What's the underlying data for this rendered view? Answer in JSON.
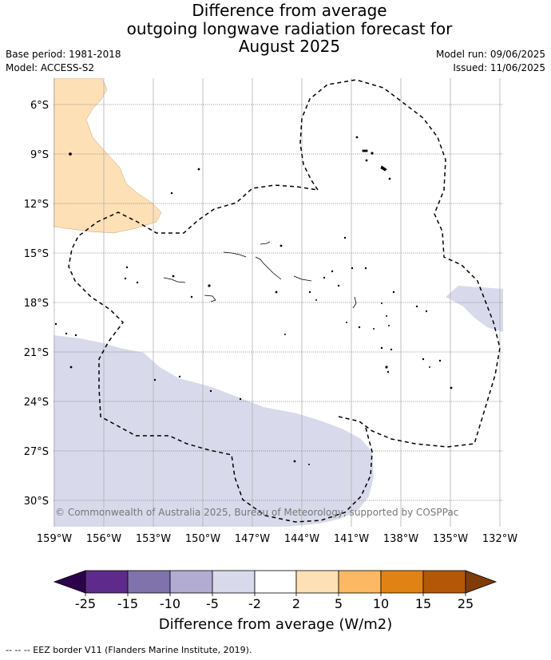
{
  "title": {
    "line1": "Difference from average",
    "line2": "outgoing longwave radiation forecast for",
    "line3": "August 2025"
  },
  "meta": {
    "base_period": "Base period: 1981-2018",
    "model": "Model: ACCESS-S2",
    "model_run": "Model run: 09/06/2025",
    "issued": "Issued: 11/06/2025"
  },
  "copyright": "© Commonwealth of Australia 2025, Bureau of Meteorology, supported by COSPPac",
  "footer": "-- -- -- EEZ border V11 (Flanders Marine Institute, 2019).",
  "chart_data": {
    "type": "heatmap",
    "x_range": [
      -159,
      -132
    ],
    "y_range": [
      -31.5,
      -4.5
    ],
    "x_ticks": [
      {
        "value": -159,
        "label": "159°W"
      },
      {
        "value": -156,
        "label": "156°W"
      },
      {
        "value": -153,
        "label": "153°W"
      },
      {
        "value": -150,
        "label": "150°W"
      },
      {
        "value": -147,
        "label": "147°W"
      },
      {
        "value": -144,
        "label": "144°W"
      },
      {
        "value": -141,
        "label": "141°W"
      },
      {
        "value": -138,
        "label": "138°W"
      },
      {
        "value": -135,
        "label": "135°W"
      },
      {
        "value": -132,
        "label": "132°W"
      }
    ],
    "y_ticks": [
      {
        "value": -6,
        "label": "6°S"
      },
      {
        "value": -9,
        "label": "9°S"
      },
      {
        "value": -12,
        "label": "12°S"
      },
      {
        "value": -15,
        "label": "15°S"
      },
      {
        "value": -18,
        "label": "18°S"
      },
      {
        "value": -21,
        "label": "21°S"
      },
      {
        "value": -24,
        "label": "24°S"
      },
      {
        "value": -27,
        "label": "27°S"
      },
      {
        "value": -30,
        "label": "30°S"
      }
    ],
    "grid": true,
    "colorbar": {
      "title": "Difference from average (W/m2)",
      "tick_labels": [
        "-25",
        "-15",
        "-10",
        "-5",
        "-2",
        "2",
        "5",
        "10",
        "15",
        "25"
      ],
      "bins": [
        {
          "range": [
            -25,
            -15
          ],
          "color": "#5e2a8c"
        },
        {
          "range": [
            -15,
            -10
          ],
          "color": "#8073ac"
        },
        {
          "range": [
            -10,
            -5
          ],
          "color": "#b2abd2"
        },
        {
          "range": [
            -5,
            -2
          ],
          "color": "#d8daeb"
        },
        {
          "range": [
            -2,
            2
          ],
          "color": "#ffffff"
        },
        {
          "range": [
            2,
            5
          ],
          "color": "#fee0b6"
        },
        {
          "range": [
            5,
            10
          ],
          "color": "#fdb863"
        },
        {
          "range": [
            10,
            15
          ],
          "color": "#e08214"
        },
        {
          "range": [
            15,
            25
          ],
          "color": "#b35806"
        }
      ],
      "under_color": "#2d004b",
      "over_color": "#7f3b08"
    },
    "anomaly_regions": [
      {
        "category": "2 to 5",
        "color": "#fee0b6",
        "location": "north-west"
      },
      {
        "category": "-5 to -2",
        "color": "#d8daeb",
        "location": "south-west"
      },
      {
        "category": "-5 to -2",
        "color": "#d8daeb",
        "location": "east"
      }
    ]
  }
}
